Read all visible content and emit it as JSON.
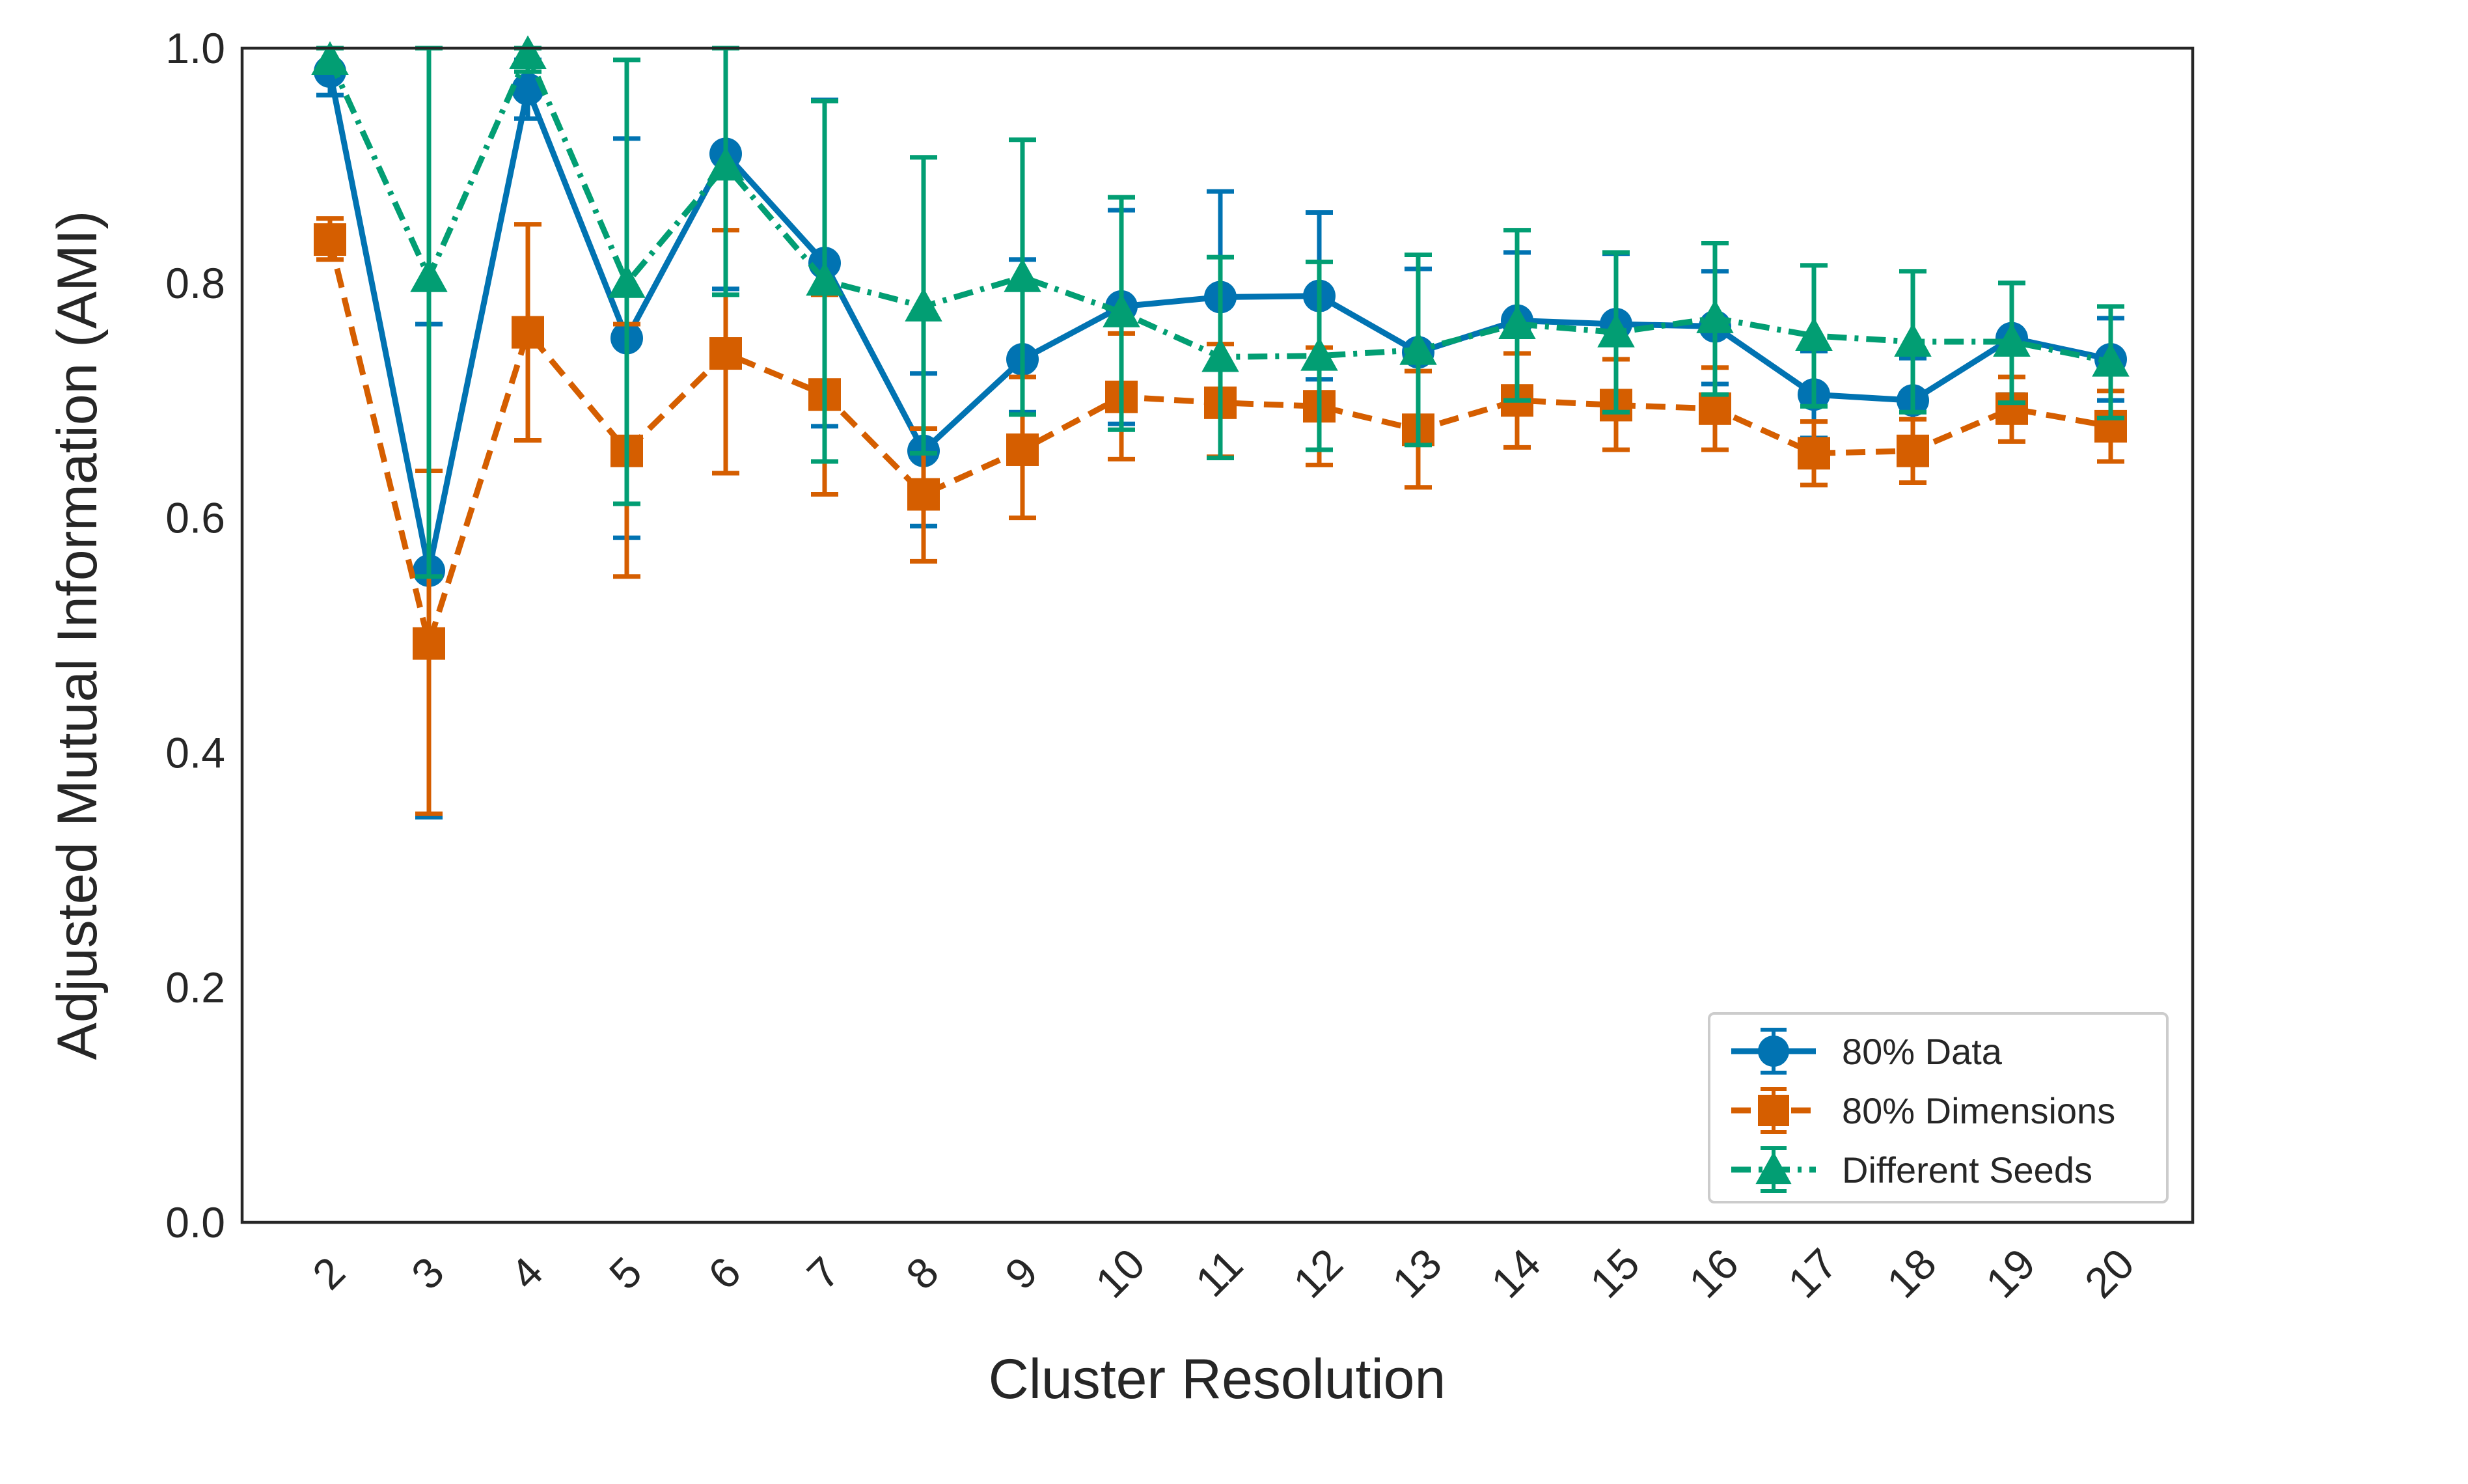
{
  "chart_data": {
    "type": "line",
    "title": "",
    "xlabel": "Cluster Resolution",
    "ylabel": "Adjusted Mutual Information (AMI)",
    "categories": [
      "2",
      "3",
      "4",
      "5",
      "6",
      "7",
      "8",
      "9",
      "10",
      "11",
      "12",
      "13",
      "14",
      "15",
      "16",
      "17",
      "18",
      "19",
      "20"
    ],
    "ylim": [
      0.0,
      1.0
    ],
    "yticks": [
      "0.0",
      "0.2",
      "0.4",
      "0.6",
      "0.8",
      "1.0"
    ],
    "grid": false,
    "legend_position": "lower-right",
    "series": [
      {
        "name": "80% Data",
        "color": "#0173b2",
        "marker": "circle",
        "linestyle": "solid",
        "values": [
          0.98,
          0.555,
          0.965,
          0.753,
          0.91,
          0.817,
          0.657,
          0.735,
          0.78,
          0.788,
          0.789,
          0.741,
          0.768,
          0.765,
          0.763,
          0.705,
          0.7,
          0.753,
          0.735
        ],
        "err_low": [
          0.96,
          0.345,
          0.94,
          0.583,
          0.795,
          0.678,
          0.593,
          0.69,
          0.68,
          0.698,
          0.718,
          0.67,
          0.71,
          0.706,
          0.714,
          0.668,
          0.664,
          0.705,
          0.7
        ],
        "err_high": [
          1.0,
          0.765,
          0.99,
          0.923,
          1.0,
          0.956,
          0.723,
          0.82,
          0.862,
          0.878,
          0.86,
          0.812,
          0.826,
          0.825,
          0.81,
          0.742,
          0.736,
          0.8,
          0.77
        ]
      },
      {
        "name": "80% Dimensions",
        "color": "#d55e00",
        "marker": "square",
        "linestyle": "dashed",
        "values": [
          0.837,
          0.493,
          0.758,
          0.657,
          0.74,
          0.705,
          0.62,
          0.658,
          0.703,
          0.698,
          0.695,
          0.675,
          0.7,
          0.696,
          0.693,
          0.655,
          0.657,
          0.693,
          0.678
        ],
        "err_low": [
          0.82,
          0.348,
          0.666,
          0.55,
          0.638,
          0.62,
          0.563,
          0.6,
          0.65,
          0.652,
          0.645,
          0.626,
          0.66,
          0.658,
          0.658,
          0.628,
          0.63,
          0.665,
          0.648
        ],
        "err_high": [
          0.855,
          0.64,
          0.85,
          0.765,
          0.845,
          0.79,
          0.676,
          0.72,
          0.757,
          0.748,
          0.745,
          0.725,
          0.74,
          0.735,
          0.728,
          0.682,
          0.684,
          0.72,
          0.708
        ]
      },
      {
        "name": "Different Seeds",
        "color": "#029e73",
        "marker": "triangle",
        "linestyle": "dashdot",
        "values": [
          0.99,
          0.805,
          0.995,
          0.8,
          0.9,
          0.802,
          0.78,
          0.805,
          0.775,
          0.737,
          0.738,
          0.743,
          0.765,
          0.758,
          0.77,
          0.755,
          0.75,
          0.75,
          0.733
        ],
        "err_low": [
          0.98,
          0.55,
          0.98,
          0.612,
          0.79,
          0.648,
          0.655,
          0.688,
          0.675,
          0.651,
          0.658,
          0.662,
          0.7,
          0.69,
          0.705,
          0.695,
          0.69,
          0.698,
          0.685
        ],
        "err_high": [
          1.0,
          1.0,
          1.0,
          0.99,
          1.0,
          0.955,
          0.907,
          0.922,
          0.873,
          0.822,
          0.818,
          0.824,
          0.845,
          0.826,
          0.834,
          0.815,
          0.81,
          0.8,
          0.78
        ]
      }
    ]
  }
}
